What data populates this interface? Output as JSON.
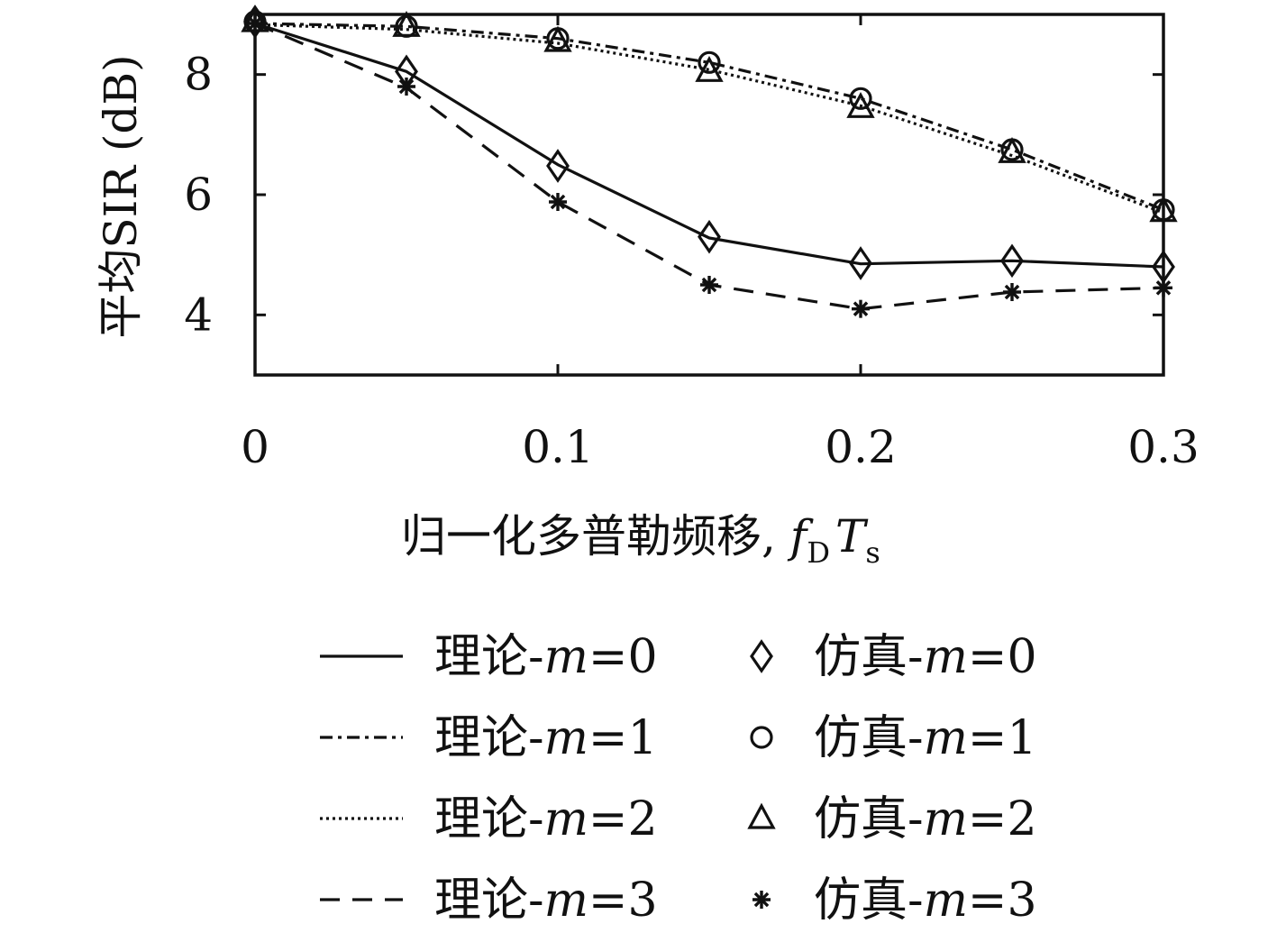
{
  "chart_data": {
    "type": "line",
    "xlabel": "归一化多普勒频移, ",
    "xlabel_math": {
      "f": "f",
      "D": "D",
      "T": "T",
      "s": "s"
    },
    "ylabel": "平均SIR (dB)",
    "x": [
      0,
      0.05,
      0.1,
      0.15,
      0.2,
      0.25,
      0.3
    ],
    "xlim": [
      0,
      0.3
    ],
    "ylim": [
      3,
      9
    ],
    "xticks": [
      0,
      0.1,
      0.2,
      0.3
    ],
    "xtick_labels": [
      "0",
      "0.1",
      "0.2",
      "0.3"
    ],
    "yticks": [
      4,
      6,
      8
    ],
    "ytick_labels": [
      "4",
      "6",
      "8"
    ],
    "legend_position": "below",
    "series": [
      {
        "name": "理论-m=0",
        "prefix": "理论-",
        "m": "m",
        "eq": "=0",
        "kind": "line",
        "dash": "solid",
        "values": [
          8.85,
          8.05,
          6.5,
          5.28,
          4.85,
          4.9,
          4.8
        ]
      },
      {
        "name": "理论-m=1",
        "prefix": "理论-",
        "m": "m",
        "eq": "=1",
        "kind": "line",
        "dash": "dashdot",
        "values": [
          8.85,
          8.8,
          8.6,
          8.2,
          7.6,
          6.75,
          5.75
        ]
      },
      {
        "name": "理论-m=2",
        "prefix": "理论-",
        "m": "m",
        "eq": "=2",
        "kind": "line",
        "dash": "dotted",
        "values": [
          8.83,
          8.75,
          8.52,
          8.08,
          7.48,
          6.65,
          5.7
        ]
      },
      {
        "name": "理论-m=3",
        "prefix": "理论-",
        "m": "m",
        "eq": "=3",
        "kind": "line",
        "dash": "dashed",
        "values": [
          8.85,
          7.78,
          5.88,
          4.5,
          4.1,
          4.38,
          4.45
        ]
      },
      {
        "name": "仿真-m=0",
        "prefix": "仿真-",
        "m": "m",
        "eq": "=0",
        "kind": "marker",
        "marker": "diamond",
        "values": [
          8.88,
          8.05,
          6.48,
          5.3,
          4.86,
          4.9,
          4.8
        ]
      },
      {
        "name": "仿真-m=1",
        "prefix": "仿真-",
        "m": "m",
        "eq": "=1",
        "kind": "marker",
        "marker": "circle",
        "values": [
          8.88,
          8.8,
          8.6,
          8.2,
          7.6,
          6.75,
          5.75
        ]
      },
      {
        "name": "仿真-m=2",
        "prefix": "仿真-",
        "m": "m",
        "eq": "=2",
        "kind": "marker",
        "marker": "triangle",
        "values": [
          8.88,
          8.8,
          8.55,
          8.05,
          7.45,
          6.7,
          5.72
        ]
      },
      {
        "name": "仿真-m=3",
        "prefix": "仿真-",
        "m": "m",
        "eq": "=3",
        "kind": "marker",
        "marker": "star",
        "values": [
          8.85,
          7.8,
          5.88,
          4.5,
          4.1,
          4.38,
          4.45
        ]
      }
    ],
    "color": "#111111"
  }
}
